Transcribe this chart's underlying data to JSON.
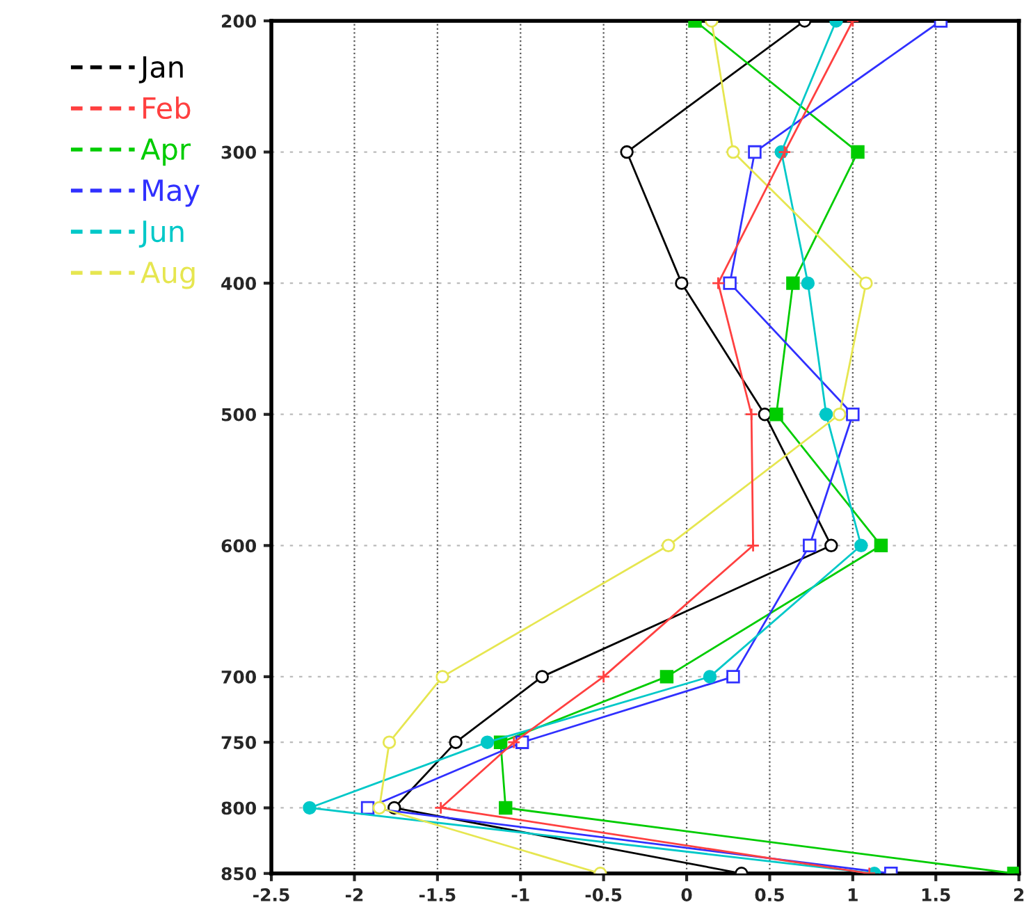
{
  "chart_data": {
    "type": "line",
    "xlim": [
      -2.5,
      2
    ],
    "xticks": [
      -2.5,
      -2,
      -1.5,
      -1,
      -0.5,
      0,
      0.5,
      1,
      1.5,
      2
    ],
    "ylim": [
      850,
      200
    ],
    "yticks": [
      200,
      300,
      400,
      500,
      600,
      700,
      750,
      800,
      850
    ],
    "grid": true,
    "legend": "left",
    "line_style": "solid",
    "series": [
      {
        "name": "Jan",
        "color": "#000000",
        "marker": "circle",
        "x": [
          0.71,
          -0.36,
          -0.03,
          0.47,
          0.87,
          -0.87,
          -1.39,
          -1.76,
          0.33
        ],
        "values": [
          200,
          300,
          400,
          500,
          600,
          700,
          750,
          800,
          850
        ]
      },
      {
        "name": "Feb",
        "color": "#ff4040",
        "marker": "cross",
        "x": [
          1.0,
          0.59,
          0.19,
          0.39,
          0.4,
          -0.5,
          -1.04,
          -1.48,
          1.1
        ],
        "values": [
          200,
          300,
          400,
          500,
          600,
          700,
          750,
          800,
          850
        ]
      },
      {
        "name": "Apr",
        "color": "#00cc00",
        "marker": "square",
        "x": [
          0.05,
          1.03,
          0.64,
          0.54,
          1.17,
          -0.12,
          -1.12,
          -1.09,
          1.97
        ],
        "values": [
          200,
          300,
          400,
          500,
          600,
          700,
          750,
          800,
          850
        ]
      },
      {
        "name": "May",
        "color": "#3030ff",
        "marker": "square",
        "x": [
          1.53,
          0.41,
          0.26,
          1.0,
          0.74,
          0.28,
          -0.99,
          -1.92,
          1.23
        ],
        "values": [
          200,
          300,
          400,
          500,
          600,
          700,
          750,
          800,
          850
        ]
      },
      {
        "name": "Jun",
        "color": "#00c8c8",
        "marker": "circle",
        "x": [
          0.9,
          0.57,
          0.73,
          0.84,
          1.05,
          0.14,
          -1.2,
          -2.27,
          1.13
        ],
        "values": [
          200,
          300,
          400,
          500,
          600,
          700,
          750,
          800,
          850
        ]
      },
      {
        "name": "Aug",
        "color": "#e6e650",
        "marker": "circle",
        "x": [
          0.15,
          0.28,
          1.08,
          0.92,
          -0.11,
          -1.47,
          -1.79,
          -1.85,
          -0.52
        ],
        "values": [
          200,
          300,
          400,
          500,
          600,
          700,
          750,
          800,
          850
        ]
      }
    ]
  }
}
